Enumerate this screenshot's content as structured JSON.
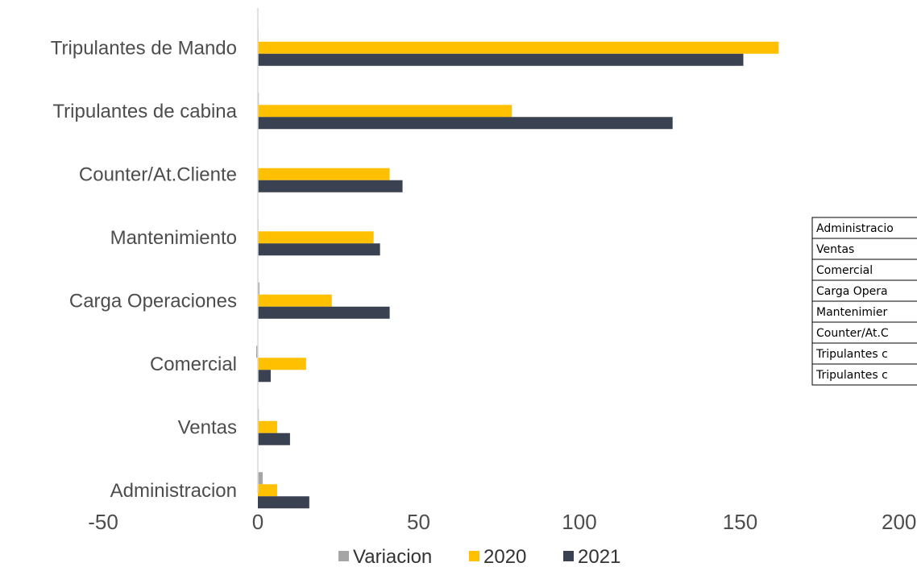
{
  "chart_data": {
    "type": "bar",
    "orientation": "horizontal",
    "categories": [
      "Administracion",
      "Ventas",
      "Comercial",
      "Carga Operaciones",
      "Mantenimiento",
      "Counter/At.Cliente",
      "Tripulantes de cabina",
      "Tripulantes de Mando"
    ],
    "series": [
      {
        "name": "Variacion",
        "values": [
          1.5,
          0.3,
          -0.5,
          0.5,
          0.2,
          0.1,
          0.3,
          0.2
        ]
      },
      {
        "name": "2020",
        "values": [
          6,
          6,
          15,
          23,
          36,
          41,
          79,
          162
        ]
      },
      {
        "name": "2021",
        "values": [
          16,
          10,
          4,
          41,
          38,
          45,
          129,
          151
        ]
      }
    ],
    "xlim": [
      -50,
      200
    ],
    "x_ticks": [
      "-50",
      "0",
      "50",
      "100",
      "150",
      "200"
    ],
    "legend_position": "bottom",
    "grid": false,
    "colors": {
      "Variacion": "#a5a5a5",
      "2020": "#ffc000",
      "2021": "#3a4150",
      "axis": "#d9d9d9"
    }
  },
  "overlay_table": {
    "rows": [
      "Administracio",
      "Ventas",
      "Comercial",
      "Carga Opera",
      "Mantenimier",
      "Counter/At.C",
      "Tripulantes c",
      "Tripulantes c"
    ]
  }
}
